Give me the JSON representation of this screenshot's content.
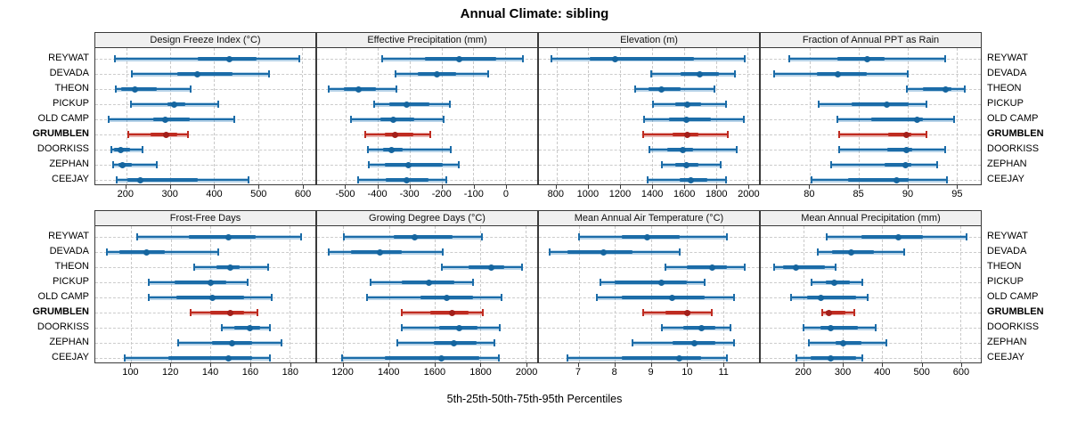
{
  "title": "Annual Climate: sibling",
  "footer": "5th-25th-50th-75th-95th Percentiles",
  "percentile_labels": [
    "5th",
    "25th",
    "50th",
    "75th",
    "95th"
  ],
  "stations": [
    "REYWAT",
    "DEVADA",
    "THEON",
    "PICKUP",
    "OLD CAMP",
    "GRUMBLEN",
    "DOORKISS",
    "ZEPHAN",
    "CEEJAY"
  ],
  "highlight_station": "GRUMBLEN",
  "colors": {
    "blue": "#1b6ca8",
    "blue_dot": "#15659f",
    "blue_light": "rgba(49, 130, 189, 0.35)",
    "red": "#bf2b20",
    "red_dot": "#a31f1a",
    "red_light": "rgba(191, 43, 32, 0.35)",
    "grid": "#c9c9c9",
    "header_bg": "#f0f0f0",
    "panel_border": "#3a3a3a"
  },
  "chart_data": [
    {
      "type": "percentile-dotplot",
      "title": "Design Freeze Index (°C)",
      "xlim": [
        130,
        630
      ],
      "ticks": [
        200,
        300,
        400,
        500,
        600
      ],
      "series": [
        [
          175,
          362,
          434,
          496,
          593
        ],
        [
          212,
          317,
          361,
          442,
          524
        ],
        [
          177,
          189,
          220,
          270,
          347
        ],
        [
          210,
          294,
          309,
          335,
          410
        ],
        [
          161,
          261,
          289,
          344,
          446
        ],
        [
          205,
          256,
          291,
          317,
          341
        ],
        [
          167,
          172,
          187,
          209,
          238
        ],
        [
          170,
          182,
          192,
          212,
          270
        ],
        [
          179,
          202,
          233,
          362,
          479
        ]
      ]
    },
    {
      "type": "percentile-dotplot",
      "title": "Effective Precipitation (mm)",
      "xlim": [
        -590,
        100
      ],
      "ticks": [
        -500,
        -400,
        -300,
        -200,
        -100,
        0
      ],
      "series": [
        [
          -386,
          -252,
          -144,
          -28,
          56
        ],
        [
          -344,
          -275,
          -214,
          -154,
          -53
        ],
        [
          -554,
          -507,
          -461,
          -405,
          -342
        ],
        [
          -412,
          -365,
          -308,
          -238,
          -174
        ],
        [
          -484,
          -393,
          -352,
          -286,
          -194
        ],
        [
          -440,
          -377,
          -345,
          -289,
          -235
        ],
        [
          -430,
          -383,
          -356,
          -321,
          -172
        ],
        [
          -427,
          -377,
          -303,
          -196,
          -146
        ],
        [
          -461,
          -376,
          -308,
          -240,
          -186
        ]
      ]
    },
    {
      "type": "percentile-dotplot",
      "title": "Elevation (m)",
      "xlim": [
        690,
        2070
      ],
      "ticks": [
        800,
        1000,
        1200,
        1400,
        1600,
        1800,
        2000
      ],
      "series": [
        [
          768,
          1006,
          1167,
          1660,
          1978
        ],
        [
          1394,
          1576,
          1700,
          1817,
          1919
        ],
        [
          1293,
          1376,
          1459,
          1580,
          1793
        ],
        [
          1404,
          1543,
          1622,
          1709,
          1863
        ],
        [
          1348,
          1506,
          1613,
          1766,
          1974
        ],
        [
          1345,
          1526,
          1620,
          1692,
          1876
        ],
        [
          1381,
          1496,
          1593,
          1654,
          1928
        ],
        [
          1459,
          1543,
          1617,
          1691,
          1830
        ],
        [
          1372,
          1571,
          1641,
          1747,
          1861
        ]
      ]
    },
    {
      "type": "percentile-dotplot",
      "title": "Fraction of Annual PPT as Rain",
      "xlim": [
        75,
        97.5
      ],
      "ticks": [
        80,
        85,
        90,
        95
      ],
      "series": [
        [
          77.9,
          82.8,
          85.9,
          87.7,
          93.9
        ],
        [
          76.4,
          80.7,
          82.9,
          85.8,
          90.0
        ],
        [
          89.9,
          91.6,
          93.9,
          94.5,
          95.9
        ],
        [
          80.9,
          84.3,
          87.9,
          90.1,
          91.9
        ],
        [
          82.8,
          86.3,
          91.0,
          91.6,
          94.8
        ],
        [
          83.0,
          88.0,
          89.9,
          90.4,
          91.9
        ],
        [
          83.0,
          87.9,
          89.9,
          90.5,
          93.9
        ],
        [
          82.2,
          87.7,
          89.8,
          90.4,
          93.0
        ],
        [
          80.2,
          83.9,
          88.9,
          90.1,
          94.0
        ]
      ]
    },
    {
      "type": "percentile-dotplot",
      "title": "Frost-Free Days",
      "xlim": [
        82,
        193
      ],
      "ticks": [
        100,
        120,
        140,
        160,
        180
      ],
      "series": [
        [
          103,
          129,
          149,
          163,
          186
        ],
        [
          88,
          94,
          108,
          117,
          144
        ],
        [
          132,
          143,
          150,
          155,
          169
        ],
        [
          109,
          122,
          140,
          148,
          159
        ],
        [
          109,
          123,
          141,
          157,
          171
        ],
        [
          130,
          140,
          150,
          157,
          164
        ],
        [
          146,
          152,
          160,
          165,
          170
        ],
        [
          124,
          141,
          151,
          161,
          176
        ],
        [
          97,
          119,
          149,
          161,
          170
        ]
      ]
    },
    {
      "type": "percentile-dotplot",
      "title": "Growing Degree Days (°C)",
      "xlim": [
        1085,
        2050
      ],
      "ticks": [
        1200,
        1400,
        1600,
        1800,
        2000
      ],
      "series": [
        [
          1203,
          1422,
          1512,
          1680,
          1809
        ],
        [
          1137,
          1235,
          1361,
          1455,
          1635
        ],
        [
          1633,
          1751,
          1848,
          1906,
          1984
        ],
        [
          1319,
          1455,
          1577,
          1687,
          1770
        ],
        [
          1302,
          1538,
          1652,
          1770,
          1893
        ],
        [
          1458,
          1583,
          1676,
          1751,
          1813
        ],
        [
          1457,
          1622,
          1710,
          1790,
          1887
        ],
        [
          1435,
          1596,
          1684,
          1783,
          1861
        ],
        [
          1196,
          1383,
          1629,
          1796,
          1883
        ]
      ]
    },
    {
      "type": "percentile-dotplot",
      "title": "Mean Annual Air Temperature (°C)",
      "xlim": [
        5.9,
        12.0
      ],
      "ticks": [
        7,
        8,
        9,
        10,
        11
      ],
      "series": [
        [
          7.0,
          8.2,
          8.9,
          9.8,
          11.1
        ],
        [
          6.2,
          6.7,
          7.7,
          8.5,
          9.8
        ],
        [
          9.4,
          10.0,
          10.7,
          11.1,
          11.6
        ],
        [
          7.6,
          8.0,
          9.3,
          10.0,
          10.5
        ],
        [
          7.5,
          8.2,
          9.6,
          10.5,
          11.3
        ],
        [
          8.8,
          9.4,
          10.0,
          10.1,
          10.7
        ],
        [
          9.3,
          9.9,
          10.4,
          10.8,
          11.2
        ],
        [
          8.5,
          9.6,
          10.2,
          10.8,
          11.3
        ],
        [
          6.7,
          8.2,
          9.8,
          10.4,
          11.1
        ]
      ]
    },
    {
      "type": "percentile-dotplot",
      "title": "Mean Annual Precipitation (mm)",
      "xlim": [
        90,
        652
      ],
      "ticks": [
        200,
        300,
        400,
        500,
        600
      ],
      "series": [
        [
          258,
          348,
          441,
          504,
          616
        ],
        [
          235,
          273,
          320,
          378,
          457
        ],
        [
          123,
          147,
          181,
          254,
          282
        ],
        [
          219,
          256,
          277,
          318,
          350
        ],
        [
          168,
          209,
          243,
          333,
          363
        ],
        [
          247,
          255,
          264,
          307,
          330
        ],
        [
          199,
          243,
          269,
          337,
          384
        ],
        [
          213,
          282,
          301,
          348,
          410
        ],
        [
          181,
          217,
          269,
          333,
          350
        ]
      ]
    }
  ]
}
